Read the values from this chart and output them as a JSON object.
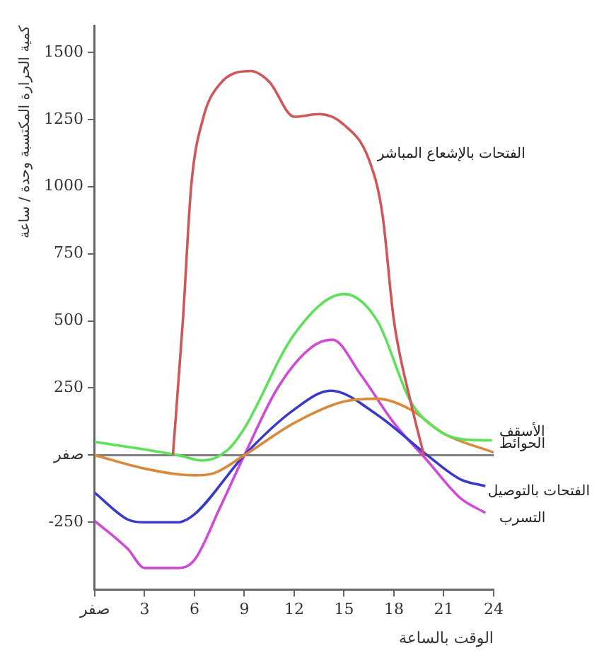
{
  "chart_data": {
    "type": "line",
    "ylabel": "كمية الحرارة المكتسبة وحدة / ساعة",
    "xlabel": "الوقت بالساعة",
    "xlim": [
      0,
      24
    ],
    "xticks": [
      {
        "value": 0,
        "label": "صفر"
      },
      3,
      6,
      9,
      12,
      15,
      18,
      21,
      24
    ],
    "ylim": [
      -500,
      1600
    ],
    "yticks": [
      -250,
      {
        "value": 0,
        "label": "صفر"
      },
      250,
      500,
      750,
      1000,
      1250,
      1500
    ],
    "grid": false,
    "legend": false,
    "marker": "none",
    "line_style": "solid",
    "ref_lines": [
      {
        "axis": "y",
        "value": 0,
        "color": "#808080"
      }
    ],
    "series": [
      {
        "name": "الفتحات بالإشعاع المباشر",
        "color": "#d0565a",
        "x": [
          4.7,
          5.3,
          5.8,
          6.5,
          7.5,
          9.4,
          10.5,
          12,
          13.5,
          15,
          16.5,
          17.3,
          18,
          19,
          19.8
        ],
        "values": [
          0,
          500,
          1000,
          1250,
          1380,
          1430,
          1390,
          1260,
          1270,
          1230,
          1100,
          900,
          500,
          200,
          0
        ]
      },
      {
        "name": "الأسقف",
        "color": "#5ee05a",
        "x": [
          0,
          5,
          6.5,
          8,
          9,
          12,
          15,
          17,
          19,
          20.5,
          22,
          23.9
        ],
        "values": [
          50,
          0,
          -20,
          20,
          100,
          450,
          600,
          500,
          200,
          100,
          60,
          55
        ]
      },
      {
        "name": "الحوائط",
        "color": "#d98a3a",
        "x": [
          0,
          3,
          6,
          7,
          9,
          12,
          15,
          17,
          19,
          21,
          24
        ],
        "values": [
          0,
          -50,
          -75,
          -70,
          0,
          120,
          200,
          210,
          170,
          80,
          10
        ]
      },
      {
        "name": "الفتحات بالتوصيل",
        "color": "#3a3ac8",
        "x": [
          0,
          2,
          3,
          5,
          6,
          9,
          12,
          14.2,
          17,
          20,
          22,
          23.5
        ],
        "values": [
          -140,
          -240,
          -250,
          -250,
          -220,
          0,
          170,
          240,
          150,
          0,
          -90,
          -115
        ]
      },
      {
        "name": "التسرب",
        "color": "#d04ad8",
        "x": [
          0,
          2,
          3,
          5,
          6,
          7.5,
          9,
          11,
          13,
          14.3,
          16,
          18,
          20,
          22,
          23.5
        ],
        "values": [
          -245,
          -350,
          -420,
          -420,
          -390,
          -200,
          0,
          250,
          400,
          430,
          300,
          120,
          -20,
          -160,
          -215
        ]
      }
    ]
  }
}
